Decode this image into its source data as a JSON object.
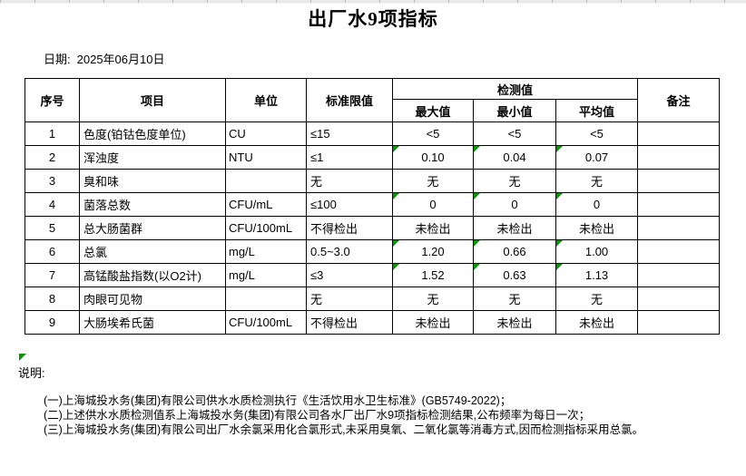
{
  "title": "出厂水9项指标",
  "date": {
    "label": "日期:",
    "value": "2025年06月10日"
  },
  "table": {
    "headers": {
      "no": "序号",
      "item": "项目",
      "unit": "单位",
      "limit": "标准限值",
      "detection": "检测值",
      "max": "最大值",
      "min": "最小值",
      "avg": "平均值",
      "remark": "备注"
    },
    "rows": [
      {
        "no": "1",
        "item": "色度(铂钴色度单位)",
        "unit": "CU",
        "limit": "≤15",
        "max": "<5",
        "min": "<5",
        "avg": "<5",
        "remark": "",
        "flagged": false
      },
      {
        "no": "2",
        "item": "浑浊度",
        "unit": "NTU",
        "limit": "≤1",
        "max": "0.10",
        "min": "0.04",
        "avg": "0.07",
        "remark": "",
        "flagged": true
      },
      {
        "no": "3",
        "item": "臭和味",
        "unit": "",
        "limit": "无",
        "max": "无",
        "min": "无",
        "avg": "无",
        "remark": "",
        "flagged": false
      },
      {
        "no": "4",
        "item": "菌落总数",
        "unit": "CFU/mL",
        "limit": "≤100",
        "max": "0",
        "min": "0",
        "avg": "0",
        "remark": "",
        "flagged": true
      },
      {
        "no": "5",
        "item": "总大肠菌群",
        "unit": "CFU/100mL",
        "limit": "不得检出",
        "max": "未检出",
        "min": "未检出",
        "avg": "未检出",
        "remark": "",
        "flagged": false
      },
      {
        "no": "6",
        "item": "总氯",
        "unit": "mg/L",
        "limit": "0.5~3.0",
        "max": "1.20",
        "min": "0.66",
        "avg": "1.00",
        "remark": "",
        "flagged": true
      },
      {
        "no": "7",
        "item": "高锰酸盐指数(以O2计)",
        "unit": "mg/L",
        "limit": "≤3",
        "max": "1.52",
        "min": "0.63",
        "avg": "1.13",
        "remark": "",
        "flagged": true
      },
      {
        "no": "8",
        "item": "肉眼可见物",
        "unit": "",
        "limit": "无",
        "max": "无",
        "min": "无",
        "avg": "无",
        "remark": "",
        "flagged": false
      },
      {
        "no": "9",
        "item": "大肠埃希氏菌",
        "unit": "CFU/100mL",
        "limit": "不得检出",
        "max": "未检出",
        "min": "未检出",
        "avg": "未检出",
        "remark": "",
        "flagged": false
      }
    ]
  },
  "notes": {
    "label": "说明:",
    "items": [
      "(一)上海城投水务(集团)有限公司供水水质检测执行《生活饮用水卫生标准》(GB5749-2022)；",
      "(二)上述供水水质检测值系上海城投水务(集团)有限公司各水厂出厂水9项指标检测结果,公布频率为每日一次；",
      "(三)上海城投水务(集团)有限公司出厂水余氯采用化合氯形式,未采用臭氧、二氧化氯等消毒方式,因而检测指标采用总氯。"
    ]
  },
  "colors": {
    "border": "#000000",
    "flag_triangle": "#009900",
    "top_strip": "#e9e9e9"
  }
}
